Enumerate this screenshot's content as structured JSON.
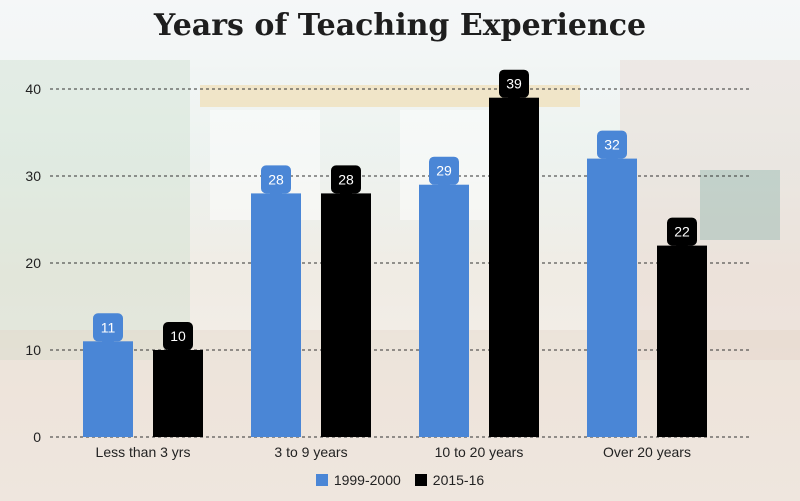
{
  "chart_data": {
    "type": "bar",
    "title": "Years of Teaching Experience",
    "xlabel": "",
    "ylabel": "",
    "categories": [
      "Less than 3 yrs",
      "3 to 9 years",
      "10 to 20 years",
      "Over 20 years"
    ],
    "series": [
      {
        "name": "1999-2000",
        "values": [
          11,
          28,
          29,
          32
        ],
        "color": "#4a86d6"
      },
      {
        "name": "2015-16",
        "values": [
          10,
          28,
          39,
          22
        ],
        "color": "#000000"
      }
    ],
    "yticks": [
      0,
      10,
      20,
      30,
      40
    ],
    "ylim": [
      0,
      40
    ],
    "grid": true,
    "legend": "bottom",
    "data_labels": true
  }
}
